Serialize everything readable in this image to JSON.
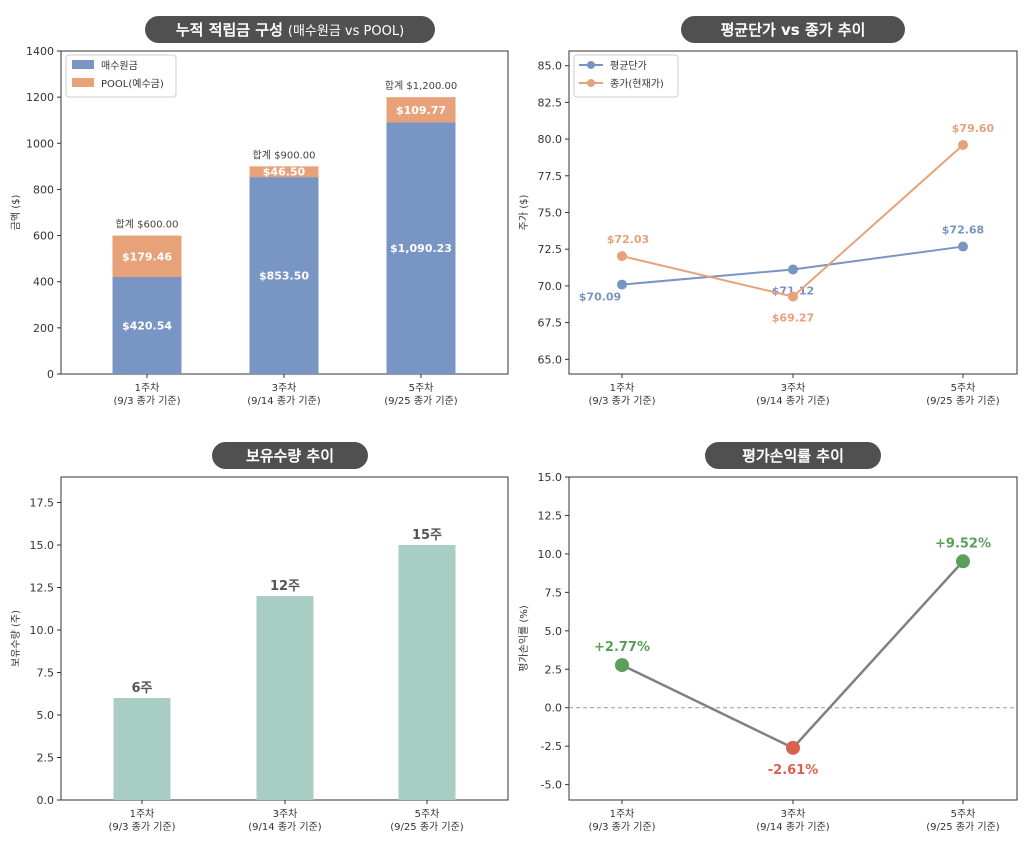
{
  "colors": {
    "buy": "#7895c4",
    "pool": "#e8a27a",
    "avg": "#7895c4",
    "close": "#e8a27a",
    "qty": "#a8cdc3",
    "gain": "#5aa05a",
    "loss": "#d9624e",
    "pnl_line": "#808080",
    "title_bg": "#505050"
  },
  "chart_data": [
    {
      "type": "bar",
      "stacked": true,
      "title": "누적 적립금 구성",
      "subtitle": "(매수원금 vs POOL)",
      "ylabel": "금액 ($)",
      "ylim": [
        0,
        1400
      ],
      "yticks": [
        "0",
        "200",
        "400",
        "600",
        "800",
        "1000",
        "1200",
        "1400"
      ],
      "categories": [
        [
          "1주차",
          "(9/3 종가 기준)"
        ],
        [
          "3주차",
          "(9/14 종가 기준)"
        ],
        [
          "5주차",
          "(9/25 종가 기준)"
        ]
      ],
      "series": [
        {
          "name": "매수원금",
          "values": [
            420.54,
            853.5,
            1090.23
          ],
          "labels": [
            "$420.54",
            "$853.50",
            "$1,090.23"
          ]
        },
        {
          "name": "POOL(예수금)",
          "values": [
            179.46,
            46.5,
            109.77
          ],
          "labels": [
            "$179.46",
            "$46.50",
            "$109.77"
          ]
        }
      ],
      "totals": [
        "합계 $600.00",
        "합계 $900.00",
        "합계 $1,200.00"
      ],
      "legend": "top-left"
    },
    {
      "type": "line",
      "title": "평균단가 vs 종가 추이",
      "ylabel": "주가 ($)",
      "ylim": [
        64,
        86
      ],
      "yticks": [
        "65.0",
        "67.5",
        "70.0",
        "72.5",
        "75.0",
        "77.5",
        "80.0",
        "82.5",
        "85.0"
      ],
      "categories": [
        [
          "1주차",
          "(9/3 종가 기준)"
        ],
        [
          "3주차",
          "(9/14 종가 기준)"
        ],
        [
          "5주차",
          "(9/25 종가 기준)"
        ]
      ],
      "series": [
        {
          "name": "평균단가",
          "values": [
            70.09,
            71.12,
            72.68
          ],
          "labels": [
            "$70.09",
            "$71.12",
            "$72.68"
          ]
        },
        {
          "name": "종가(현재가)",
          "values": [
            72.03,
            69.27,
            79.6
          ],
          "labels": [
            "$72.03",
            "$69.27",
            "$79.60"
          ]
        }
      ],
      "legend": "top-left"
    },
    {
      "type": "bar",
      "title": "보유수량 추이",
      "ylabel": "보유수량 (주)",
      "ylim": [
        0,
        19
      ],
      "yticks": [
        "0.0",
        "2.5",
        "5.0",
        "7.5",
        "10.0",
        "12.5",
        "15.0",
        "17.5"
      ],
      "categories": [
        [
          "1주차",
          "(9/3 종가 기준)"
        ],
        [
          "3주차",
          "(9/14 종가 기준)"
        ],
        [
          "5주차",
          "(9/25 종가 기준)"
        ]
      ],
      "values": [
        6,
        12,
        15
      ],
      "labels": [
        "6주",
        "12주",
        "15주"
      ]
    },
    {
      "type": "line",
      "title": "평가손익률 추이",
      "ylabel": "평가손익률 (%)",
      "ylim": [
        -6,
        15
      ],
      "yticks": [
        "-5.0",
        "-2.5",
        "0.0",
        "2.5",
        "5.0",
        "7.5",
        "10.0",
        "12.5",
        "15.0"
      ],
      "categories": [
        [
          "1주차",
          "(9/3 종가 기준)"
        ],
        [
          "3주차",
          "(9/14 종가 기준)"
        ],
        [
          "5주차",
          "(9/25 종가 기준)"
        ]
      ],
      "values": [
        2.77,
        -2.61,
        9.52
      ],
      "labels": [
        "+2.77%",
        "-2.61%",
        "+9.52%"
      ],
      "zero_line": true
    }
  ]
}
